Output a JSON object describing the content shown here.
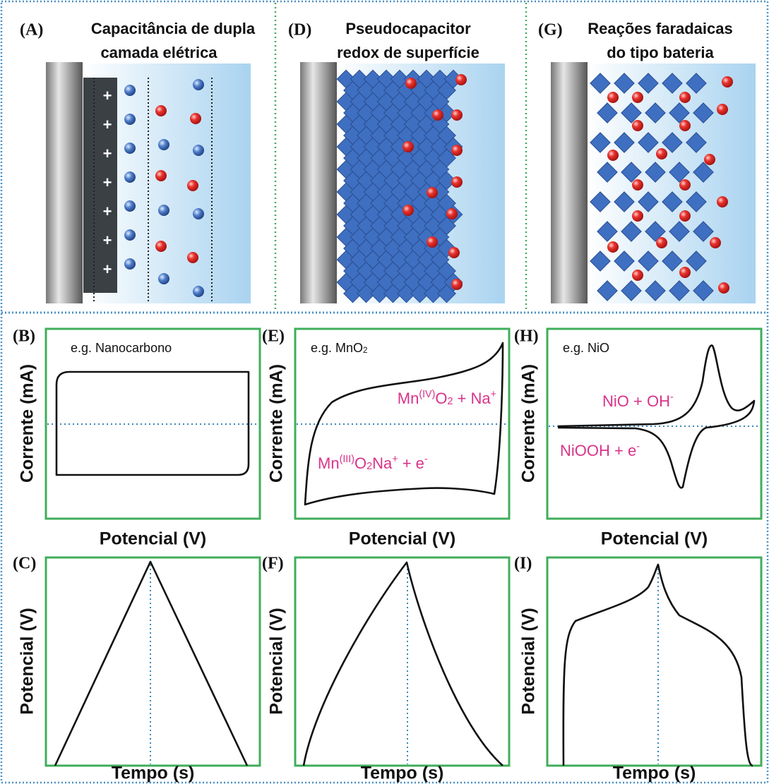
{
  "panels": [
    {
      "label": "(A)",
      "title": [
        "Capacitância de dupla",
        "camada elétrica"
      ]
    },
    {
      "label": "(D)",
      "title": [
        "Pseudocapacitor",
        "redox de superfície"
      ]
    },
    {
      "label": "(G)",
      "title": [
        "Reações faradaicas",
        "do tipo bateria"
      ]
    }
  ],
  "cv": [
    {
      "label": "(B)",
      "example": [
        {
          "text": "e.g. Nanocarbono"
        }
      ],
      "y_axis": "Corrente (mA)",
      "x_axis": "Potencial (V)",
      "annotations": []
    },
    {
      "label": "(E)",
      "example": [
        {
          "text": "e.g. MnO"
        },
        {
          "sub": "2"
        }
      ],
      "y_axis": "Corrente (mA)",
      "x_axis": "Potencial (V)",
      "annotations": [
        [
          {
            "text": "Mn"
          },
          {
            "sup": "(IV)"
          },
          {
            "text": "O"
          },
          {
            "sub": "2"
          },
          {
            "text": " + Na"
          },
          {
            "sup": "+"
          }
        ],
        [
          {
            "text": "Mn"
          },
          {
            "sup": "(III)"
          },
          {
            "text": "O"
          },
          {
            "sub": "2"
          },
          {
            "text": "Na"
          },
          {
            "sup": "+"
          },
          {
            "text": " + e"
          },
          {
            "sup": "-"
          }
        ]
      ]
    },
    {
      "label": "(H)",
      "example": [
        {
          "text": "e.g. NiO"
        }
      ],
      "y_axis": "Corrente (mA)",
      "x_axis": "Potencial (V)",
      "annotations": [
        [
          {
            "text": "NiO + OH"
          },
          {
            "sup": "-"
          }
        ],
        [
          {
            "text": "NiOOH + e"
          },
          {
            "sup": "-"
          }
        ]
      ]
    }
  ],
  "gcd": [
    {
      "label": "(C)",
      "y_axis": "Potencial (V)",
      "x_axis": "Tempo (s)"
    },
    {
      "label": "(F)",
      "y_axis": "Potencial (V)",
      "x_axis": "Tempo (s)"
    },
    {
      "label": "(I)",
      "y_axis": "Potencial (V)",
      "x_axis": "Tempo (s)"
    }
  ]
}
